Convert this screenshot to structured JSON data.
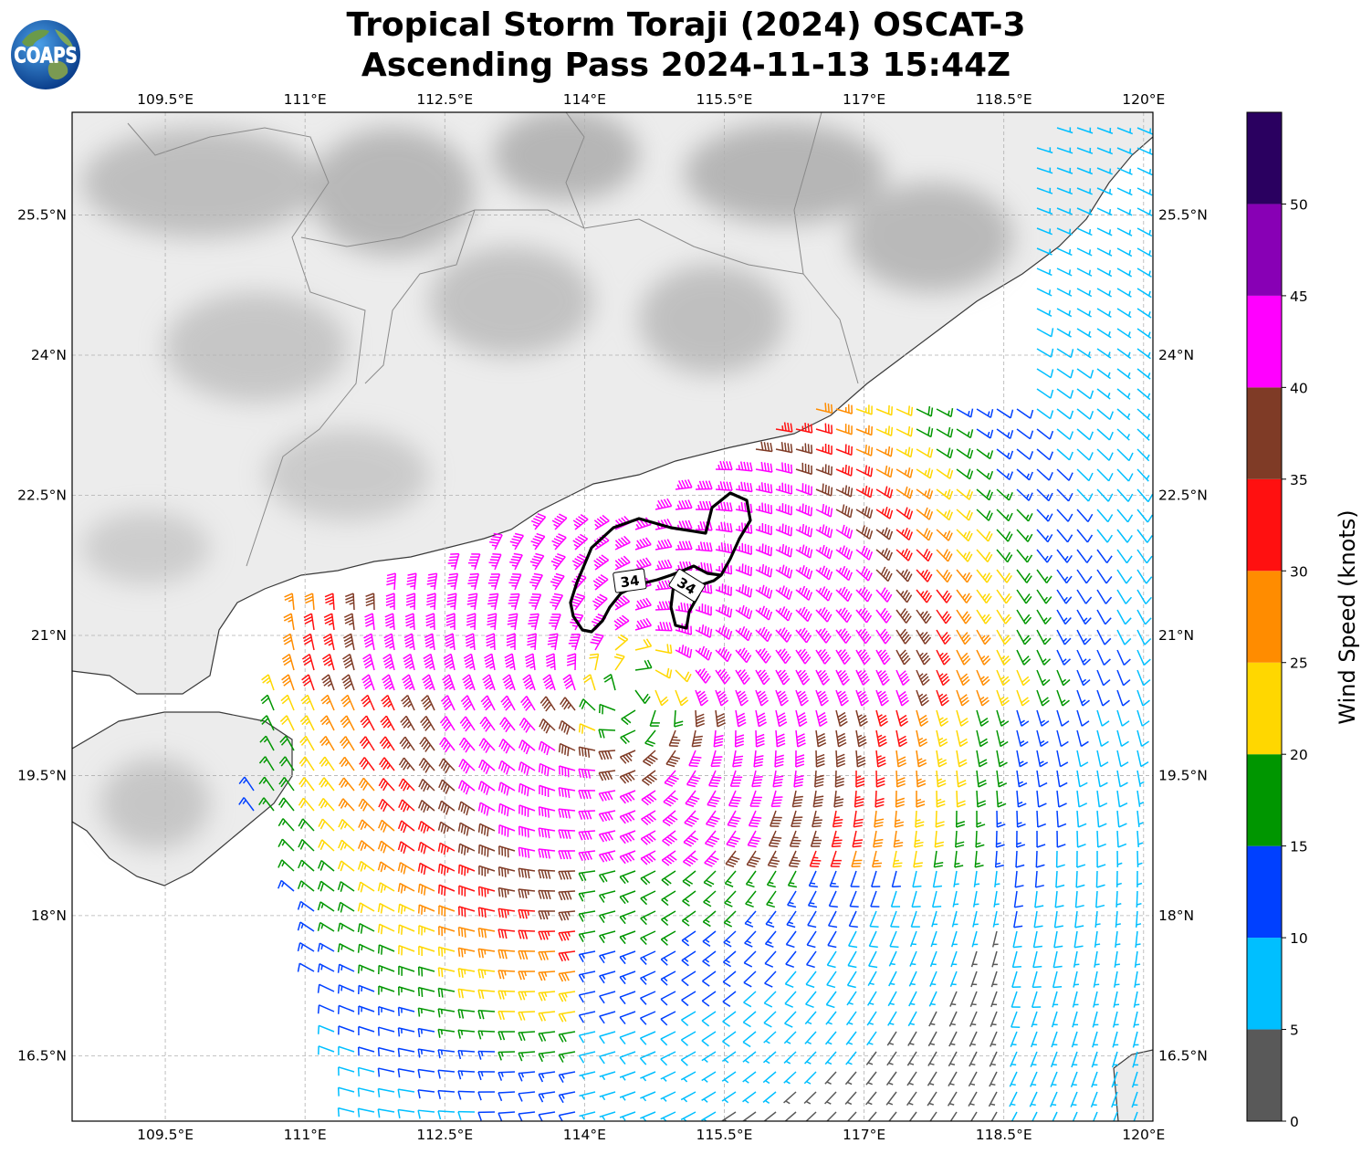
{
  "title": {
    "line1": "Tropical Storm Toraji (2024) OSCAT-3",
    "line2": "Ascending Pass 2024-11-13 15:44Z"
  },
  "logo": {
    "text": "COAPS"
  },
  "map": {
    "lon_range": [
      108.5,
      120.1
    ],
    "lat_range": [
      15.8,
      26.6
    ],
    "lon_ticks": [
      "109.5°E",
      "111°E",
      "112.5°E",
      "114°E",
      "115.5°E",
      "117°E",
      "118.5°E",
      "120°E"
    ],
    "lon_tick_values": [
      109.5,
      111,
      112.5,
      114,
      115.5,
      117,
      118.5,
      120
    ],
    "lat_ticks": [
      "16.5°N",
      "18°N",
      "19.5°N",
      "21°N",
      "22.5°N",
      "24°N",
      "25.5°N"
    ],
    "lat_tick_values": [
      16.5,
      18,
      19.5,
      21,
      22.5,
      24,
      25.5
    ],
    "gridlines": true,
    "storm_center": {
      "lon": 114.5,
      "lat": 20.4
    },
    "contour_label": "34"
  },
  "colorbar": {
    "label": "Wind Speed (knots)",
    "tick_labels": [
      "0",
      "5",
      "10",
      "15",
      "20",
      "25",
      "30",
      "35",
      "40",
      "45",
      "50"
    ],
    "bins": [
      {
        "min": 0,
        "max": 5,
        "color": "#595959"
      },
      {
        "min": 5,
        "max": 10,
        "color": "#00bfff"
      },
      {
        "min": 10,
        "max": 15,
        "color": "#0040ff"
      },
      {
        "min": 15,
        "max": 20,
        "color": "#009600"
      },
      {
        "min": 20,
        "max": 25,
        "color": "#ffd700"
      },
      {
        "min": 25,
        "max": 30,
        "color": "#ff8c00"
      },
      {
        "min": 30,
        "max": 35,
        "color": "#ff1010"
      },
      {
        "min": 35,
        "max": 40,
        "color": "#7f3b26"
      },
      {
        "min": 40,
        "max": 45,
        "color": "#ff00ff"
      },
      {
        "min": 45,
        "max": 50,
        "color": "#8800b5"
      },
      {
        "min": 50,
        "max": 55,
        "color": "#2a0060"
      }
    ]
  }
}
